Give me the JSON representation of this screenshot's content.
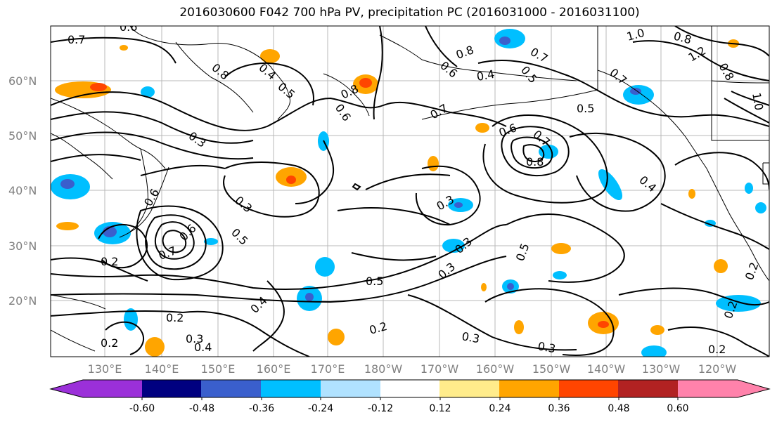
{
  "title": "2016030600 F042 700 hPa PV, precipitation PC (2016031000 - 2016031100)",
  "latitudes": [
    "20°N",
    "30°N",
    "40°N",
    "50°N",
    "60°N"
  ],
  "longitudes": [
    "130°E",
    "140°E",
    "150°E",
    "160°E",
    "170°E",
    "180°W",
    "170°W",
    "160°W",
    "150°W",
    "140°W",
    "130°W",
    "120°W"
  ],
  "colorbar": {
    "colors": [
      "#9b30d9",
      "#000080",
      "#3a5fcd",
      "#00bfff",
      "#b0e2ff",
      "#ffffff",
      "#ffec8b",
      "#ffa500",
      "#ff4500",
      "#b22222",
      "#ff82ab"
    ],
    "ticks": [
      "-0.60",
      "-0.48",
      "-0.36",
      "-0.24",
      "-0.12",
      "0.12",
      "0.24",
      "0.36",
      "0.48",
      "0.60"
    ]
  },
  "contour_labels": [
    "0.7",
    "0.6",
    "0.8",
    "0.4",
    "0.5",
    "0.6",
    "0.3",
    "0.8",
    "0.6",
    "0.8",
    "0.4",
    "0.5",
    "0.7",
    "0.7",
    "0.5",
    "0.6",
    "0.8",
    "0.7",
    "1.0",
    "0.8",
    "1.2",
    "0.8",
    "1.0",
    "0.7",
    "0.5",
    "0.6",
    "0.3",
    "0.3",
    "0.4",
    "0.5",
    "0.7",
    "0.6",
    "0.2",
    "0.3",
    "0.3",
    "0.4",
    "0.2",
    "0.3",
    "0.2",
    "0.4",
    "0.2",
    "0.5",
    "0.2",
    "0.3",
    "0.3",
    "0.2",
    "0.2"
  ]
}
